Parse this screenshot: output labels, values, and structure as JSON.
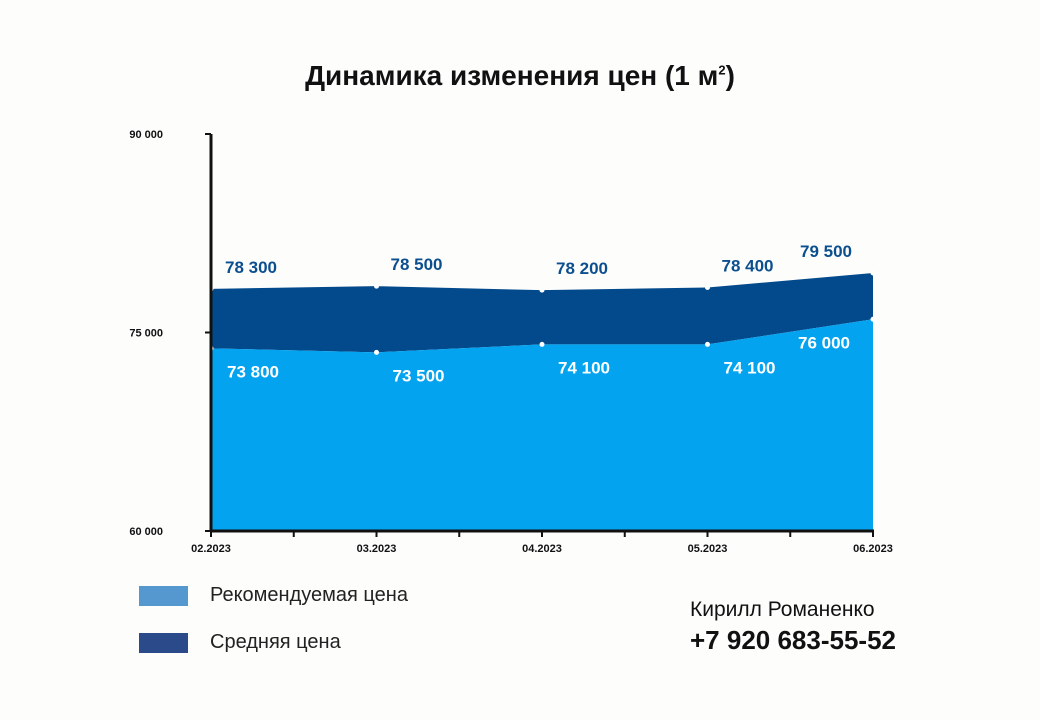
{
  "chart_data": {
    "type": "area",
    "title": "Динамика изменения цен (1 м",
    "title_superscript": "2",
    "title_end": ")",
    "categories": [
      "02.2023",
      "03.2023",
      "04.2023",
      "05.2023",
      "06.2023"
    ],
    "y_tick_labels": [
      "60 000",
      "75 000",
      "90 000"
    ],
    "ylim": [
      60000,
      90000
    ],
    "yticks": [
      60000,
      75000,
      90000
    ],
    "series": [
      {
        "name": "Рекомендуемая цена",
        "color": "#03a3ef",
        "values": [
          73800,
          73500,
          74100,
          74100,
          76000
        ],
        "labels": [
          "73 800",
          "73 500",
          "74 100",
          "74 100",
          "76 000"
        ]
      },
      {
        "name": "Средняя цена",
        "color": "#024a8c",
        "values": [
          78300,
          78500,
          78200,
          78400,
          79500
        ],
        "labels": [
          "78 300",
          "78 500",
          "78 200",
          "78 400",
          "79 500"
        ]
      }
    ],
    "legend_colors": [
      "#5598d0",
      "#2a4a8a"
    ],
    "grid": false,
    "legend_position": "bottom-left"
  },
  "contact": {
    "name": "Кирилл Романенко",
    "phone": "+7 920 683-55-52"
  }
}
